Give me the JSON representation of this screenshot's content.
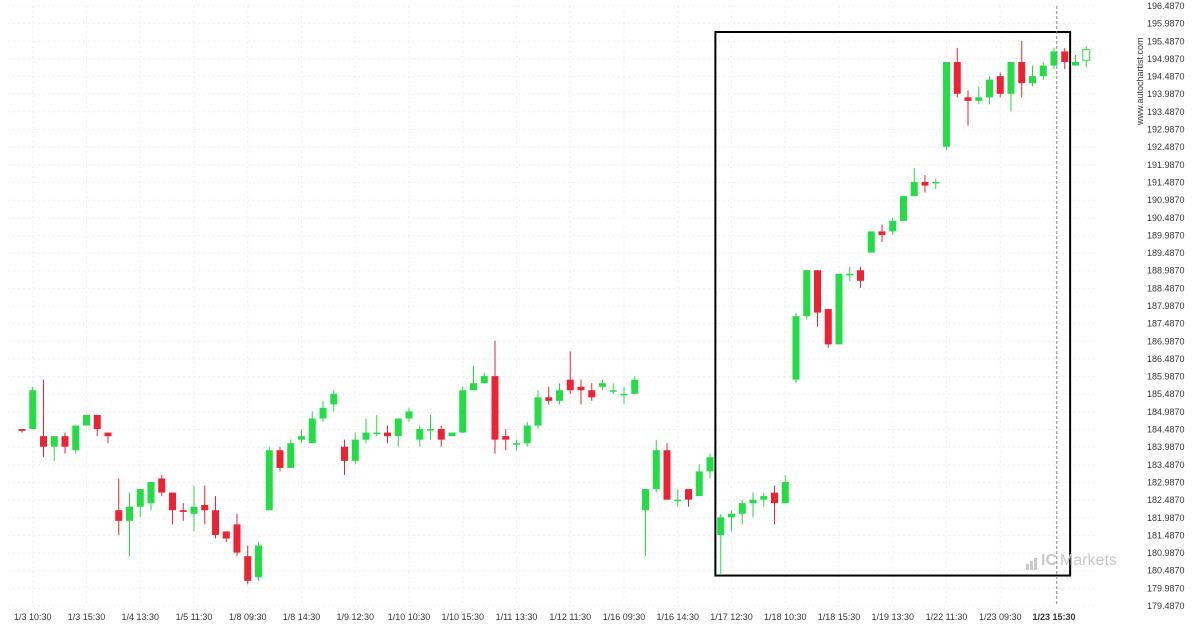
{
  "colors": {
    "bull": "#22dd44",
    "bear": "#ee2233",
    "frame": "#000000",
    "grid": "#eeeeee"
  },
  "watermark": "www.autochartist.com",
  "brand": {
    "prefix": "IC",
    "suffix": "Markets"
  },
  "chart_data": {
    "type": "candlestick",
    "ylim": [
      179.487,
      196.487
    ],
    "y_ticks": [
      "196.4870",
      "195.9870",
      "195.4870",
      "194.9870",
      "194.4870",
      "193.9870",
      "193.4870",
      "192.9870",
      "192.4870",
      "191.9870",
      "191.4870",
      "190.9870",
      "190.4870",
      "189.9870",
      "189.4870",
      "188.9870",
      "188.4870",
      "187.9870",
      "187.4870",
      "186.9870",
      "186.4870",
      "185.9870",
      "185.4870",
      "184.9870",
      "184.4870",
      "183.9870",
      "183.4870",
      "182.9870",
      "182.4870",
      "181.9870",
      "181.4870",
      "180.9870",
      "180.4870",
      "179.9870",
      "179.4870"
    ],
    "x_labels": [
      {
        "i": 1,
        "t": "1/3 10:30"
      },
      {
        "i": 6,
        "t": "1/3 15:30"
      },
      {
        "i": 11,
        "t": "1/4 13:30"
      },
      {
        "i": 16,
        "t": "1/5 11:30"
      },
      {
        "i": 21,
        "t": "1/8 09:30"
      },
      {
        "i": 26,
        "t": "1/8 14:30"
      },
      {
        "i": 31,
        "t": "1/9 12:30"
      },
      {
        "i": 36,
        "t": "1/10 10:30"
      },
      {
        "i": 41,
        "t": "1/10 15:30"
      },
      {
        "i": 46,
        "t": "1/11 13:30"
      },
      {
        "i": 51,
        "t": "1/12 11:30"
      },
      {
        "i": 56,
        "t": "1/16 09:30"
      },
      {
        "i": 61,
        "t": "1/16 14:30"
      },
      {
        "i": 66,
        "t": "1/17 12:30"
      },
      {
        "i": 71,
        "t": "1/18 10:30"
      },
      {
        "i": 76,
        "t": "1/18 15:30"
      },
      {
        "i": 81,
        "t": "1/19 13:30"
      },
      {
        "i": 86,
        "t": "1/22 11:30"
      },
      {
        "i": 91,
        "t": "1/23 09:30"
      },
      {
        "i": 96,
        "t": "1/23 15:30",
        "bold": true
      }
    ],
    "pattern_box": {
      "from": 64.5,
      "to": 97.5,
      "low": 180.35,
      "high": 195.75
    },
    "current_index": 97,
    "candles": [
      [
        184.5,
        184.45,
        184.5,
        184.4
      ],
      [
        184.5,
        185.6,
        185.7,
        184.5
      ],
      [
        184.3,
        184.0,
        185.9,
        183.7
      ],
      [
        184.0,
        184.3,
        184.3,
        183.6
      ],
      [
        184.3,
        184.0,
        184.4,
        183.8
      ],
      [
        183.9,
        184.6,
        184.6,
        183.8
      ],
      [
        184.6,
        184.9,
        184.9,
        184.6
      ],
      [
        184.9,
        184.5,
        184.9,
        184.3
      ],
      [
        184.4,
        184.3,
        184.4,
        184.1
      ],
      [
        182.2,
        181.9,
        183.1,
        181.5
      ],
      [
        181.9,
        182.3,
        182.7,
        180.9
      ],
      [
        182.3,
        182.8,
        182.8,
        182.0
      ],
      [
        182.4,
        183.0,
        183.0,
        182.2
      ],
      [
        183.1,
        182.7,
        183.2,
        182.6
      ],
      [
        182.7,
        182.2,
        182.7,
        181.8
      ],
      [
        182.2,
        182.15,
        182.4,
        181.9
      ],
      [
        182.1,
        182.3,
        182.9,
        181.6
      ],
      [
        182.35,
        182.2,
        182.9,
        181.8
      ],
      [
        182.2,
        181.5,
        182.6,
        181.4
      ],
      [
        181.6,
        181.4,
        181.6,
        181.3
      ],
      [
        181.8,
        181.0,
        182.1,
        180.9
      ],
      [
        180.9,
        180.2,
        181.2,
        180.1
      ],
      [
        180.3,
        181.2,
        181.3,
        180.2
      ],
      [
        182.2,
        183.9,
        184.0,
        182.2
      ],
      [
        183.9,
        183.4,
        184.0,
        183.3
      ],
      [
        183.4,
        184.1,
        184.2,
        183.4
      ],
      [
        184.2,
        184.3,
        184.5,
        184.1
      ],
      [
        184.1,
        184.8,
        185.0,
        184.1
      ],
      [
        184.8,
        185.1,
        185.3,
        184.7
      ],
      [
        185.2,
        185.5,
        185.6,
        185.0
      ],
      [
        184.0,
        183.6,
        184.2,
        183.2
      ],
      [
        183.6,
        184.2,
        184.4,
        183.5
      ],
      [
        184.2,
        184.4,
        184.8,
        184.1
      ],
      [
        184.4,
        184.4,
        184.9,
        184.3
      ],
      [
        184.4,
        184.3,
        184.6,
        184.1
      ],
      [
        184.3,
        184.8,
        184.8,
        184.0
      ],
      [
        184.8,
        185.0,
        185.1,
        184.7
      ],
      [
        184.2,
        184.5,
        184.6,
        184.0
      ],
      [
        184.5,
        184.5,
        184.9,
        184.2
      ],
      [
        184.5,
        184.2,
        184.6,
        184.0
      ],
      [
        184.3,
        184.4,
        184.4,
        184.3
      ],
      [
        184.4,
        185.6,
        185.7,
        184.4
      ],
      [
        185.6,
        185.8,
        186.3,
        185.6
      ],
      [
        185.8,
        186.0,
        186.1,
        185.8
      ],
      [
        186.0,
        184.2,
        187.0,
        183.8
      ],
      [
        184.3,
        184.2,
        184.5,
        183.9
      ],
      [
        184.1,
        184.1,
        184.2,
        183.9
      ],
      [
        184.1,
        184.6,
        184.7,
        184.0
      ],
      [
        184.6,
        185.4,
        185.6,
        184.5
      ],
      [
        185.4,
        185.3,
        185.7,
        185.2
      ],
      [
        185.3,
        185.6,
        185.8,
        185.2
      ],
      [
        185.9,
        185.6,
        186.7,
        185.5
      ],
      [
        185.7,
        185.6,
        185.9,
        185.2
      ],
      [
        185.6,
        185.4,
        185.8,
        185.3
      ],
      [
        185.7,
        185.8,
        185.9,
        185.6
      ],
      [
        185.6,
        185.6,
        185.8,
        185.5
      ],
      [
        185.5,
        185.5,
        185.7,
        185.2
      ],
      [
        185.5,
        185.9,
        186.0,
        185.5
      ],
      [
        182.2,
        182.8,
        182.8,
        180.9
      ],
      [
        182.8,
        183.9,
        184.2,
        182.7
      ],
      [
        183.9,
        182.5,
        184.1,
        182.5
      ],
      [
        182.5,
        182.5,
        182.8,
        182.3
      ],
      [
        182.8,
        182.5,
        182.8,
        182.3
      ],
      [
        182.6,
        183.3,
        183.5,
        182.6
      ],
      [
        183.3,
        183.7,
        183.8,
        183.1
      ],
      [
        181.5,
        182.0,
        182.1,
        180.4
      ],
      [
        182.0,
        182.1,
        182.2,
        181.6
      ],
      [
        182.1,
        182.4,
        182.5,
        181.8
      ],
      [
        182.4,
        182.5,
        182.7,
        182.0
      ],
      [
        182.5,
        182.6,
        182.7,
        182.3
      ],
      [
        182.7,
        182.4,
        182.9,
        181.8
      ],
      [
        182.4,
        183.0,
        183.2,
        182.4
      ],
      [
        185.9,
        187.7,
        187.8,
        185.8
      ],
      [
        187.7,
        189.0,
        189.0,
        187.6
      ],
      [
        189.0,
        187.8,
        189.0,
        187.4
      ],
      [
        187.9,
        186.9,
        187.9,
        186.8
      ],
      [
        186.9,
        188.9,
        188.9,
        186.9
      ],
      [
        188.9,
        188.9,
        189.1,
        188.7
      ],
      [
        189.0,
        188.7,
        189.1,
        188.5
      ],
      [
        189.5,
        190.1,
        190.1,
        189.5
      ],
      [
        190.1,
        190.0,
        190.3,
        189.8
      ],
      [
        190.1,
        190.4,
        190.5,
        190.0
      ],
      [
        190.4,
        191.1,
        191.1,
        190.4
      ],
      [
        191.1,
        191.5,
        191.9,
        191.1
      ],
      [
        191.5,
        191.4,
        191.7,
        191.2
      ],
      [
        191.5,
        191.5,
        191.6,
        191.3
      ],
      [
        192.5,
        194.9,
        194.9,
        192.4
      ],
      [
        194.9,
        194.0,
        195.3,
        193.9
      ],
      [
        193.9,
        193.8,
        194.1,
        193.1
      ],
      [
        193.8,
        193.9,
        194.2,
        193.7
      ],
      [
        193.9,
        194.4,
        194.5,
        193.7
      ],
      [
        194.5,
        194.0,
        194.6,
        193.9
      ],
      [
        194.0,
        194.9,
        194.9,
        193.5
      ],
      [
        194.9,
        194.3,
        195.5,
        193.9
      ],
      [
        194.3,
        194.5,
        194.8,
        194.2
      ],
      [
        194.5,
        194.8,
        194.9,
        194.4
      ],
      [
        194.8,
        195.2,
        195.3,
        194.7
      ],
      [
        195.2,
        194.9,
        195.3,
        194.7
      ],
      [
        194.8,
        194.9,
        195.1,
        194.8
      ],
      [
        194.95,
        195.25,
        195.35,
        194.75
      ]
    ]
  }
}
